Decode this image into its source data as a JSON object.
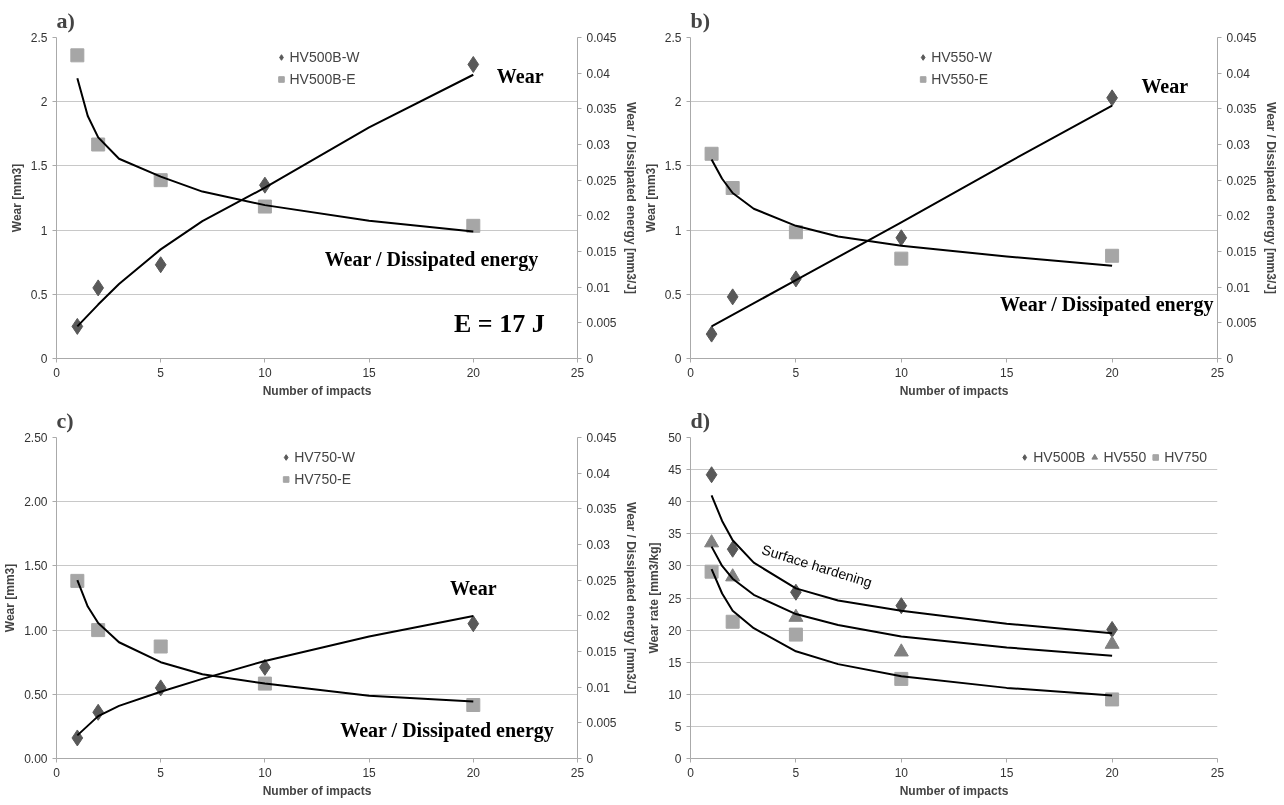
{
  "chart_data": [
    {
      "type": "scatter",
      "title": "a)",
      "xlabel": "Number of impacts",
      "ylabel": "Wear [mm3]",
      "y2label": "Wear / Dissipated energy [mm3/J]",
      "xlim": [
        0,
        25
      ],
      "xticks": [
        0,
        5,
        10,
        15,
        20,
        25
      ],
      "ylim": [
        0,
        2.5
      ],
      "yticks": [
        0,
        0.5,
        1,
        1.5,
        2,
        2.5
      ],
      "y2lim": [
        0,
        0.045
      ],
      "y2ticks": [
        0,
        0.005,
        0.01,
        0.015,
        0.02,
        0.025,
        0.03,
        0.035,
        0.04,
        0.045
      ],
      "grid": "y",
      "legend": "top",
      "x": [
        1,
        2,
        5,
        10,
        20
      ],
      "series": [
        {
          "name": "HV500B-W",
          "type": "scatter",
          "marker": "diamond",
          "color": "#595959",
          "values": [
            0.25,
            0.55,
            0.73,
            1.35,
            2.29
          ]
        },
        {
          "name": "HV500B-E",
          "type": "scatter",
          "marker": "square",
          "color": "#a6a6a6",
          "axis": "y2",
          "values": [
            0.0425,
            0.03,
            0.025,
            0.0213,
            0.0186
          ]
        },
        {
          "type": "line",
          "marker": "none",
          "color": "#000000",
          "x": [
            1,
            2,
            3,
            5,
            7,
            10,
            15,
            20
          ],
          "values": [
            0.25,
            0.42,
            0.58,
            0.85,
            1.07,
            1.33,
            1.8,
            2.21
          ]
        },
        {
          "type": "line",
          "marker": "none",
          "color": "#000000",
          "axis": "y2",
          "x": [
            1,
            1.5,
            2,
            3,
            5,
            7,
            10,
            15,
            20
          ],
          "values": [
            0.0393,
            0.034,
            0.031,
            0.028,
            0.0255,
            0.0234,
            0.0215,
            0.0193,
            0.0178
          ]
        }
      ],
      "annotations": [
        "Wear",
        "Wear / Dissipated energy",
        "E = 17 J"
      ]
    },
    {
      "type": "scatter",
      "title": "b)",
      "xlabel": "Number of impacts",
      "ylabel": "Wear [mm3]",
      "y2label": "Wear / Dissipated energy [mm3/J]",
      "xlim": [
        0,
        25
      ],
      "xticks": [
        0,
        5,
        10,
        15,
        20,
        25
      ],
      "ylim": [
        0,
        2.5
      ],
      "yticks": [
        0,
        0.5,
        1,
        1.5,
        2,
        2.5
      ],
      "y2lim": [
        0,
        0.045
      ],
      "y2ticks": [
        0,
        0.005,
        0.01,
        0.015,
        0.02,
        0.025,
        0.03,
        0.035,
        0.04,
        0.045
      ],
      "grid": "y",
      "legend": "top",
      "x": [
        1,
        2,
        5,
        10,
        20
      ],
      "series": [
        {
          "name": "HV550-W",
          "type": "scatter",
          "marker": "diamond",
          "color": "#595959",
          "values": [
            0.19,
            0.48,
            0.62,
            0.94,
            2.03
          ]
        },
        {
          "name": "HV550-E",
          "type": "scatter",
          "marker": "square",
          "color": "#a6a6a6",
          "axis": "y2",
          "values": [
            0.0287,
            0.0239,
            0.0177,
            0.014,
            0.0144
          ]
        },
        {
          "type": "line",
          "marker": "none",
          "color": "#000000",
          "x": [
            1,
            5,
            10,
            15,
            20
          ],
          "values": [
            0.25,
            0.61,
            1.06,
            1.52,
            1.97
          ]
        },
        {
          "type": "line",
          "marker": "none",
          "color": "#000000",
          "axis": "y2",
          "x": [
            1,
            1.5,
            2,
            3,
            5,
            7,
            10,
            15,
            20
          ],
          "values": [
            0.0279,
            0.0252,
            0.0232,
            0.021,
            0.0186,
            0.0171,
            0.0158,
            0.0143,
            0.013
          ]
        }
      ],
      "annotations": [
        "Wear",
        "Wear / Dissipated energy"
      ]
    },
    {
      "type": "scatter",
      "title": "c)",
      "xlabel": "Number of impacts",
      "ylabel": "Wear [mm3]",
      "y2label": "Wear / Dissipated energy [mm3/J]",
      "xlim": [
        0,
        25
      ],
      "xticks": [
        0,
        5,
        10,
        15,
        20,
        25
      ],
      "ylim": [
        0,
        2.5
      ],
      "yticks": [
        {
          "value": 0,
          "label": "0.00"
        },
        {
          "value": 0.5,
          "label": "0.50"
        },
        {
          "value": 1,
          "label": "1.00"
        },
        {
          "value": 1.5,
          "label": "1.50"
        },
        {
          "value": 2,
          "label": "2.00"
        },
        {
          "value": 2.5,
          "label": "2.50"
        }
      ],
      "y2lim": [
        0,
        0.045
      ],
      "y2ticks": [
        0,
        0.005,
        0.01,
        0.015,
        0.02,
        0.025,
        0.03,
        0.035,
        0.04,
        0.045
      ],
      "grid": "y",
      "legend": "top",
      "x": [
        1,
        2,
        5,
        10,
        20
      ],
      "series": [
        {
          "name": "HV750-W",
          "type": "scatter",
          "marker": "diamond",
          "color": "#595959",
          "values": [
            0.16,
            0.36,
            0.55,
            0.71,
            1.05
          ]
        },
        {
          "name": "HV750-E",
          "type": "scatter",
          "marker": "square",
          "color": "#a6a6a6",
          "axis": "y2",
          "values": [
            0.0249,
            0.018,
            0.0157,
            0.0105,
            0.0075
          ]
        },
        {
          "type": "line",
          "marker": "none",
          "color": "#000000",
          "x": [
            1,
            2,
            3,
            5,
            7,
            10,
            15,
            20
          ],
          "values": [
            0.18,
            0.33,
            0.41,
            0.52,
            0.62,
            0.76,
            0.95,
            1.11
          ]
        },
        {
          "type": "line",
          "marker": "none",
          "color": "#000000",
          "axis": "y2",
          "x": [
            1,
            1.5,
            2,
            3,
            5,
            7,
            10,
            15,
            20
          ],
          "values": [
            0.025,
            0.0213,
            0.019,
            0.0163,
            0.0135,
            0.0118,
            0.0105,
            0.0088,
            0.008
          ]
        }
      ],
      "annotations": [
        "Wear",
        "Wear / Dissipated energy"
      ]
    },
    {
      "type": "scatter",
      "title": "d)",
      "xlabel": "Number of impacts",
      "ylabel": "Wear rate [mm3/kg]",
      "xlim": [
        0,
        25
      ],
      "xticks": [
        0,
        5,
        10,
        15,
        20,
        25
      ],
      "ylim": [
        0,
        50
      ],
      "yticks": [
        0,
        5,
        10,
        15,
        20,
        25,
        30,
        35,
        40,
        45,
        50
      ],
      "grid": "y",
      "legend": "top right",
      "x": [
        1,
        2,
        5,
        10,
        20
      ],
      "series": [
        {
          "name": "HV500B",
          "type": "scatter",
          "marker": "diamond",
          "color": "#595959",
          "values": [
            44.2,
            32.6,
            25.9,
            23.8,
            20.1
          ]
        },
        {
          "name": "HV550",
          "type": "scatter",
          "marker": "triangle",
          "color": "#808080",
          "values": [
            33.6,
            28.3,
            22,
            16.6,
            17.8
          ]
        },
        {
          "name": "HV750",
          "type": "scatter",
          "marker": "square",
          "color": "#a6a6a6",
          "values": [
            29.1,
            21.3,
            19.3,
            12.4,
            9.2
          ]
        },
        {
          "type": "line",
          "marker": "none",
          "color": "#000000",
          "x": [
            1,
            1.5,
            2,
            3,
            5,
            7,
            10,
            15,
            20
          ],
          "values": [
            41,
            37,
            34,
            30.5,
            26.5,
            24.6,
            23,
            21,
            19.5
          ]
        },
        {
          "type": "line",
          "marker": "none",
          "color": "#000000",
          "x": [
            1,
            1.5,
            2,
            3,
            5,
            7,
            10,
            15,
            20
          ],
          "values": [
            33,
            30,
            28,
            25.5,
            22.5,
            20.8,
            19,
            17.3,
            16
          ]
        },
        {
          "type": "line",
          "marker": "none",
          "color": "#000000",
          "x": [
            1,
            1.5,
            2,
            3,
            5,
            7,
            10,
            15,
            20
          ],
          "values": [
            29.5,
            25.7,
            23,
            20.3,
            16.7,
            14.7,
            12.8,
            11,
            9.8
          ]
        }
      ],
      "annotations": [
        "Surface hardening"
      ]
    }
  ]
}
